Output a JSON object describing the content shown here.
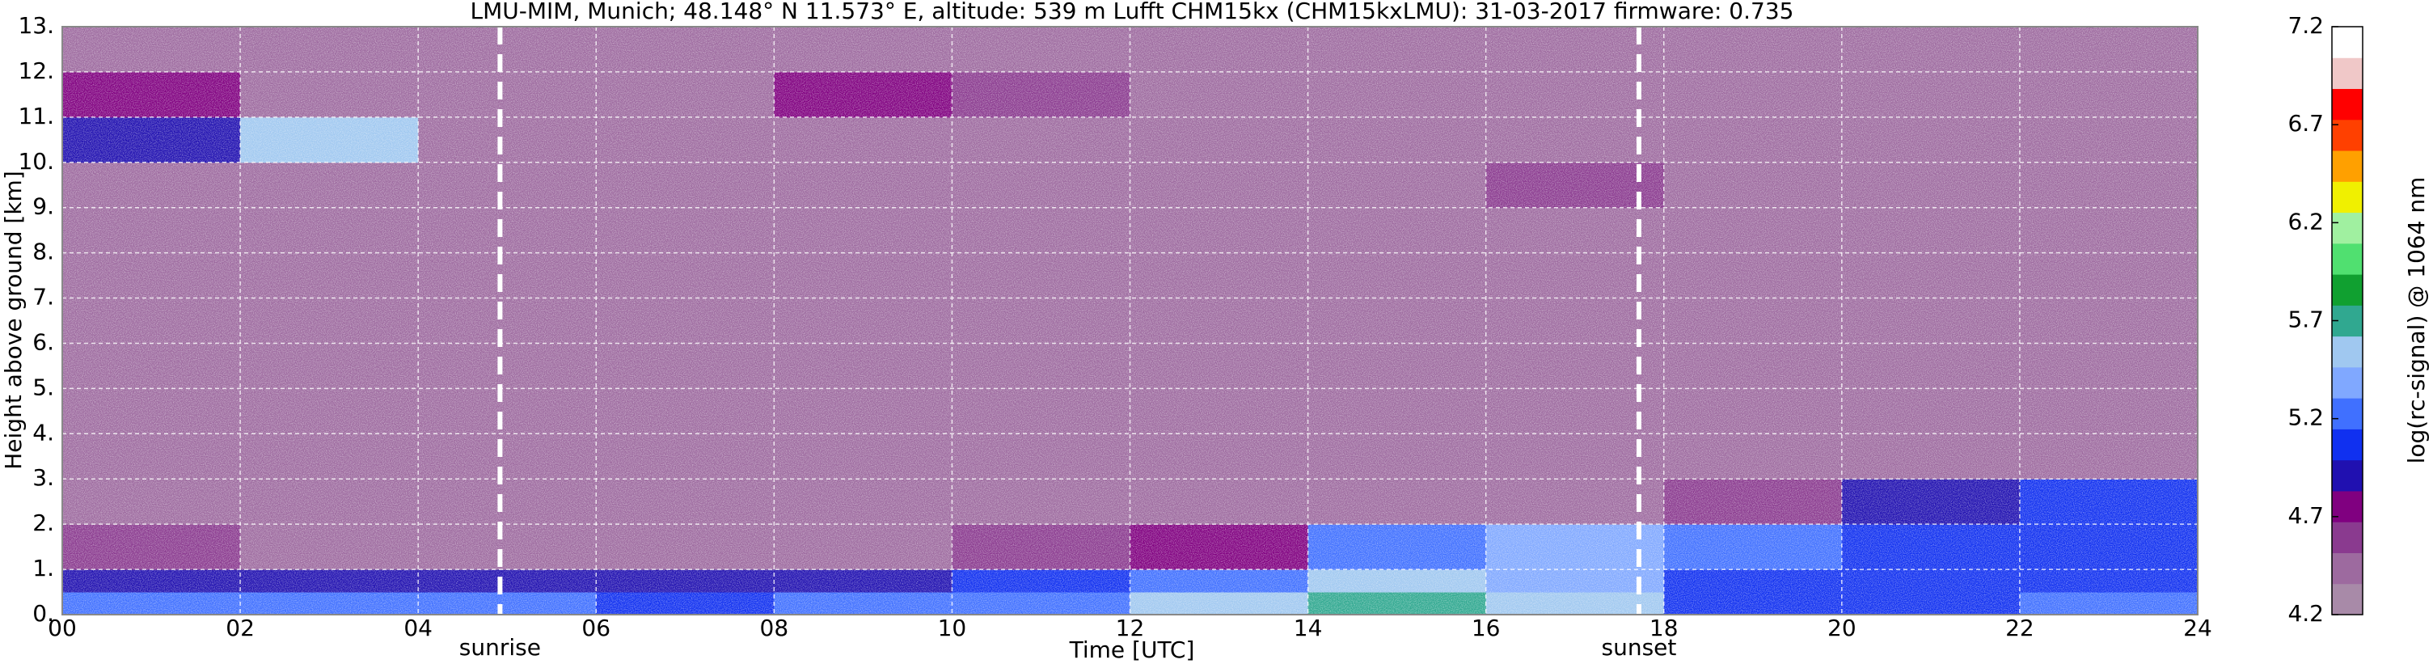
{
  "chart_data": {
    "type": "heatmap",
    "title": "LMU-MIM, Munich; 48.148° N 11.573° E, altitude: 539 m    Lufft CHM15kx (CHM15kxLMU): 31-03-2017    firmware: 0.735",
    "xlabel": "Time [UTC]",
    "ylabel": "Height above ground [km]",
    "colorbar_label": "log(rc-signal) @ 1064 nm",
    "xlim": [
      0,
      24
    ],
    "ylim": [
      0,
      13
    ],
    "clim": [
      4.2,
      7.2
    ],
    "xticks": [
      {
        "value": 0,
        "label": "00"
      },
      {
        "value": 2,
        "label": "02"
      },
      {
        "value": 4,
        "label": "04"
      },
      {
        "value": 6,
        "label": "06"
      },
      {
        "value": 8,
        "label": "08"
      },
      10,
      12,
      14,
      16,
      18,
      20,
      22,
      24
    ],
    "yticks": [
      {
        "value": 0,
        "label": "0."
      },
      {
        "value": 1,
        "label": "1."
      },
      {
        "value": 2,
        "label": "2."
      },
      {
        "value": 3,
        "label": "3."
      },
      {
        "value": 4,
        "label": "4."
      },
      {
        "value": 5,
        "label": "5."
      },
      {
        "value": 6,
        "label": "6."
      },
      {
        "value": 7,
        "label": "7."
      },
      {
        "value": 8,
        "label": "8."
      },
      {
        "value": 9,
        "label": "9."
      },
      {
        "value": 10,
        "label": "10."
      },
      {
        "value": 11,
        "label": "11."
      },
      {
        "value": 12,
        "label": "12."
      },
      {
        "value": 13,
        "label": "13."
      }
    ],
    "cticks": [
      4.2,
      4.7,
      5.2,
      5.7,
      6.2,
      6.7,
      7.2
    ],
    "grid": true,
    "x_edges": [
      0,
      2,
      4,
      6,
      8,
      10,
      12,
      14,
      16,
      18,
      20,
      22,
      24
    ],
    "y_edges": [
      0,
      0.5,
      1,
      2,
      3,
      9,
      10,
      11,
      12,
      13
    ],
    "z": [
      [
        5.2,
        5.2,
        5.2,
        5.1,
        5.2,
        5.3,
        5.5,
        5.7,
        5.6,
        5.1,
        5.1,
        5.2
      ],
      [
        4.9,
        4.9,
        4.9,
        4.9,
        4.9,
        5.1,
        5.3,
        5.5,
        5.4,
        5.0,
        5.0,
        5.0
      ],
      [
        4.6,
        4.5,
        4.5,
        4.5,
        4.5,
        4.6,
        4.8,
        5.3,
        5.4,
        5.2,
        5.1,
        5.0
      ],
      [
        4.4,
        4.4,
        4.4,
        4.4,
        4.4,
        4.4,
        4.4,
        4.5,
        4.5,
        4.6,
        4.9,
        5.1
      ],
      [
        4.4,
        4.4,
        4.4,
        4.4,
        4.4,
        4.4,
        4.4,
        4.4,
        4.4,
        4.4,
        4.4,
        4.4
      ],
      [
        4.4,
        4.4,
        4.4,
        4.4,
        4.4,
        4.4,
        4.4,
        4.4,
        4.6,
        4.4,
        4.4,
        4.4
      ],
      [
        4.9,
        5.5,
        4.4,
        4.4,
        4.4,
        4.4,
        4.4,
        4.4,
        4.4,
        4.4,
        4.4,
        4.4
      ],
      [
        4.8,
        4.4,
        4.4,
        4.4,
        4.7,
        4.6,
        4.4,
        4.4,
        4.4,
        4.4,
        4.4,
        4.4
      ],
      [
        4.4,
        4.4,
        4.4,
        4.4,
        4.4,
        4.4,
        4.4,
        4.4,
        4.4,
        4.4,
        4.4,
        4.4
      ]
    ],
    "colormap": [
      "#a88aa8",
      "#9d6a9f",
      "#8a3a8f",
      "#800080",
      "#2010b0",
      "#1030f0",
      "#4070ff",
      "#80a8ff",
      "#a0c8f0",
      "#30a890",
      "#10a030",
      "#50e070",
      "#a0f0a0",
      "#f0f000",
      "#ffa000",
      "#ff4000",
      "#ff0000",
      "#f0c8c8",
      "#ffffff"
    ],
    "annotations": [
      {
        "x": 4.92,
        "text": "sunrise"
      },
      {
        "x": 17.72,
        "text": "sunset"
      }
    ]
  }
}
